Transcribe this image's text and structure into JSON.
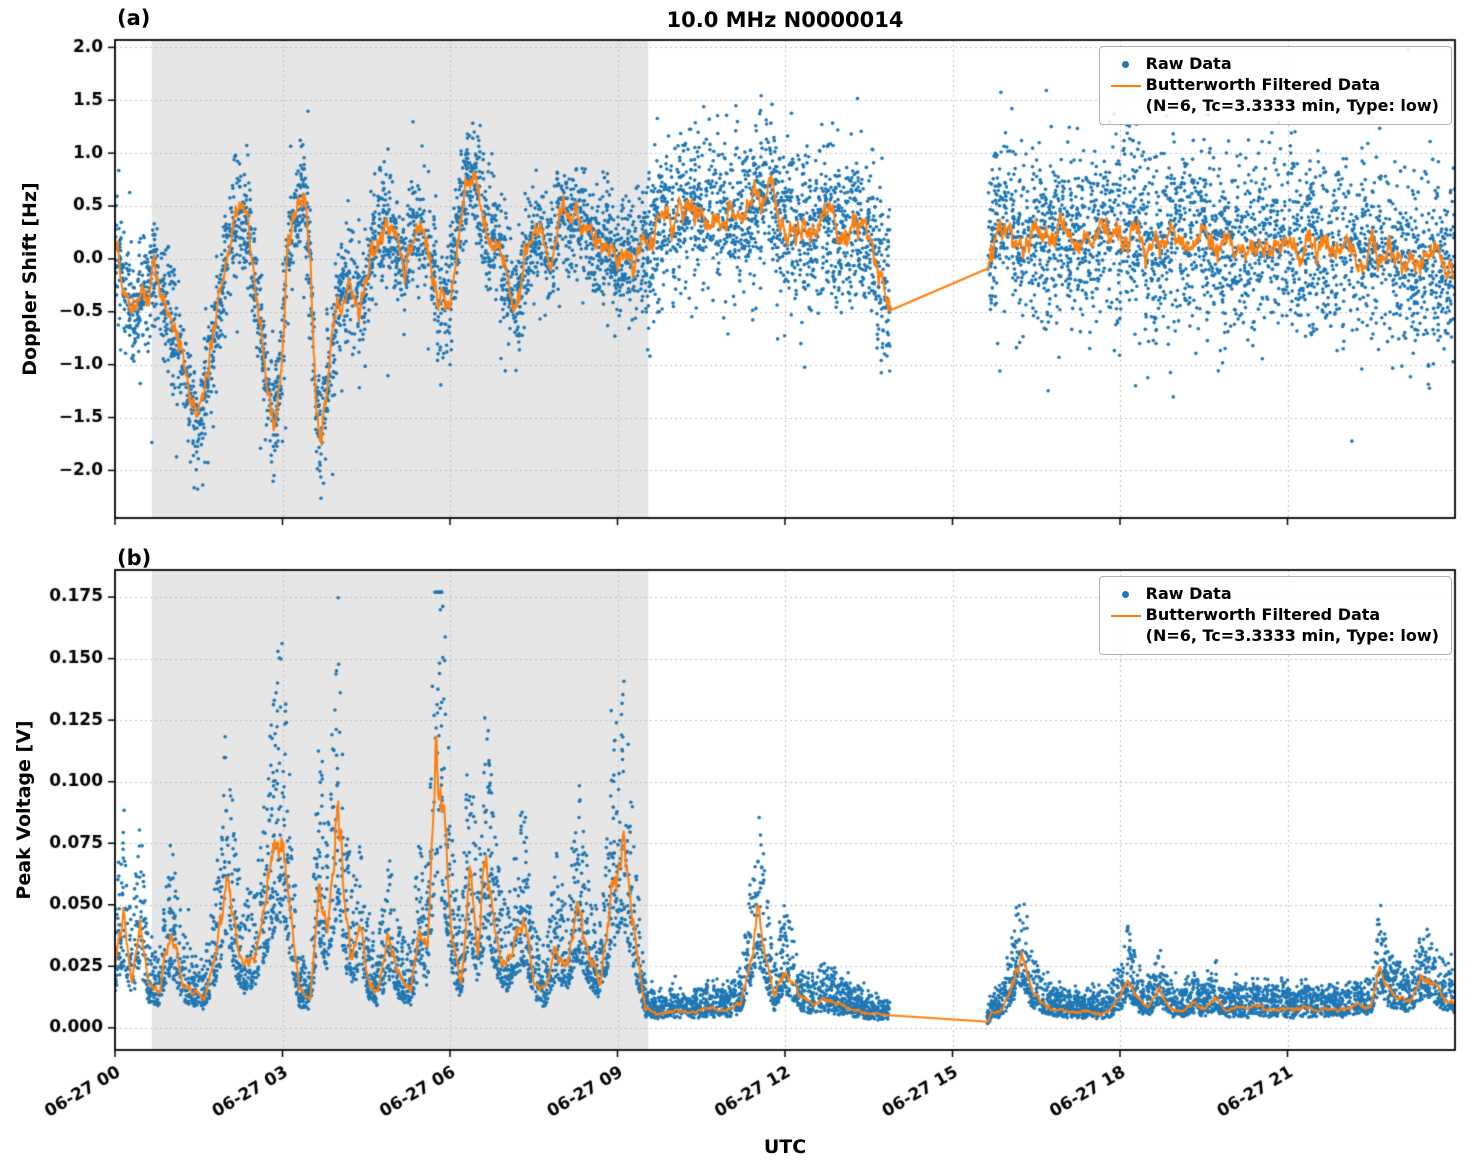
{
  "figure": {
    "title": "10.0 MHz N0000014",
    "xlabel": "UTC"
  },
  "panels": [
    {
      "label": "(a)",
      "ylabel": "Doppler Shift [Hz]"
    },
    {
      "label": "(b)",
      "ylabel": "Peak Voltage [V]"
    }
  ],
  "legend": {
    "raw_label": "Raw Data",
    "filtered_label": "Butterworth Filtered Data",
    "filtered_sublabel": "(N=6, Tc=3.3333 min, Type: low)"
  },
  "colors": {
    "raw": "#1f77b4",
    "filtered": "#ff7f0e",
    "shade": "#e6e6e6",
    "grid": "#c3c3c3",
    "spine": "#000000"
  },
  "chart_data": [
    {
      "type": "scatter",
      "panel": "a",
      "title": "10.0 MHz N0000014",
      "ylabel": "Doppler Shift [Hz]",
      "ylim": [
        -2.45,
        2.07
      ],
      "yticks": [
        2.0,
        1.5,
        1.0,
        0.5,
        0.0,
        -0.5,
        -1.0,
        -1.5,
        -2.0
      ],
      "ytick_decimals": 1,
      "xlim_hours": [
        0,
        24
      ],
      "xticks_hours": [
        0,
        3,
        6,
        9,
        12,
        15,
        18,
        21
      ],
      "xtick_labels": [
        "06-27 00",
        "06-27 03",
        "06-27 06",
        "06-27 09",
        "06-27 12",
        "06-27 15",
        "06-27 18",
        "06-27 21"
      ],
      "show_xtick_labels": false,
      "grid": true,
      "legend_position": "upper right",
      "shaded_hours": [
        0.66,
        9.55
      ],
      "gap_hours": [
        13.88,
        15.62
      ],
      "series": [
        {
          "name": "Raw Data",
          "kind": "scatter-noise",
          "n_points": 7600,
          "seed": 20140627,
          "noise_segments": [
            {
              "range": [
                0,
                9.55
              ],
              "std": 0.27
            },
            {
              "range": [
                9.55,
                13.88
              ],
              "std": 0.36
            },
            {
              "range": [
                15.62,
                24
              ],
              "std": 0.42
            }
          ],
          "outlier_prob": 0.015,
          "outlier_mag": [
            0.3,
            1.0
          ],
          "neg_outlier_frac": 0.6
        },
        {
          "name": "Butterworth Filtered Data",
          "kind": "line",
          "jitter": {
            "mode": "add",
            "ar": 0.82,
            "sigma": 0.045
          },
          "x": [
            0.0,
            0.15,
            0.3,
            0.5,
            0.7,
            0.9,
            1.1,
            1.3,
            1.5,
            1.7,
            1.9,
            2.1,
            2.3,
            2.5,
            2.7,
            2.85,
            3.0,
            3.1,
            3.25,
            3.4,
            3.5,
            3.6,
            3.7,
            3.85,
            4.0,
            4.2,
            4.4,
            4.6,
            4.8,
            5.0,
            5.2,
            5.4,
            5.6,
            5.8,
            6.0,
            6.15,
            6.3,
            6.45,
            6.6,
            6.8,
            7.0,
            7.2,
            7.4,
            7.6,
            7.8,
            8.0,
            8.2,
            8.4,
            8.6,
            8.8,
            9.0,
            9.2,
            9.4,
            9.6,
            9.8,
            10.0,
            10.25,
            10.5,
            10.75,
            11.0,
            11.25,
            11.5,
            11.75,
            12.0,
            12.25,
            12.5,
            12.75,
            13.0,
            13.25,
            13.5,
            13.88,
            15.62,
            15.75,
            16.0,
            16.25,
            16.5,
            16.75,
            17.0,
            17.25,
            17.5,
            17.75,
            18.0,
            18.25,
            18.5,
            18.75,
            19.0,
            19.25,
            19.5,
            19.75,
            20.0,
            20.25,
            20.5,
            20.75,
            21.0,
            21.25,
            21.5,
            21.75,
            22.0,
            22.25,
            22.5,
            22.75,
            23.0,
            23.25,
            23.5,
            23.75,
            24.0
          ],
          "y": [
            0.15,
            -0.25,
            -0.45,
            -0.3,
            -0.1,
            -0.45,
            -0.7,
            -1.15,
            -1.55,
            -1.0,
            -0.35,
            0.3,
            0.45,
            -0.2,
            -1.1,
            -1.6,
            -0.9,
            0.1,
            0.5,
            0.6,
            -0.1,
            -1.3,
            -1.75,
            -0.9,
            -0.4,
            -0.3,
            -0.5,
            0.1,
            0.35,
            0.2,
            -0.1,
            0.3,
            0.15,
            -0.5,
            -0.3,
            0.3,
            0.75,
            0.8,
            0.35,
            0.2,
            -0.2,
            -0.4,
            0.1,
            0.3,
            0.0,
            0.45,
            0.3,
            0.4,
            0.1,
            0.2,
            -0.05,
            0.1,
            0.0,
            0.2,
            0.45,
            0.35,
            0.5,
            0.4,
            0.35,
            0.45,
            0.35,
            0.5,
            0.65,
            0.25,
            0.3,
            0.2,
            0.35,
            0.2,
            0.3,
            0.25,
            -0.45,
            -0.1,
            0.3,
            0.35,
            0.1,
            0.25,
            0.15,
            0.3,
            0.2,
            0.1,
            0.3,
            0.2,
            0.35,
            0.15,
            0.1,
            0.2,
            0.15,
            0.25,
            0.1,
            0.15,
            0.05,
            0.15,
            0.1,
            0.2,
            0.1,
            0.15,
            0.05,
            0.1,
            0.0,
            0.1,
            0.05,
            -0.05,
            0.05,
            -0.1,
            -0.05,
            -0.15
          ]
        }
      ]
    },
    {
      "type": "scatter",
      "panel": "b",
      "ylabel": "Peak Voltage [V]",
      "ylim": [
        -0.009,
        0.186
      ],
      "yticks": [
        0.175,
        0.15,
        0.125,
        0.1,
        0.075,
        0.05,
        0.025,
        0.0
      ],
      "ytick_decimals": 3,
      "xlim_hours": [
        0,
        24
      ],
      "xticks_hours": [
        0,
        3,
        6,
        9,
        12,
        15,
        18,
        21
      ],
      "xtick_labels": [
        "06-27 00",
        "06-27 03",
        "06-27 06",
        "06-27 09",
        "06-27 12",
        "06-27 15",
        "06-27 18",
        "06-27 21"
      ],
      "show_xtick_labels": true,
      "grid": true,
      "legend_position": "upper right",
      "shaded_hours": [
        0.66,
        9.55
      ],
      "gap_hours": [
        13.88,
        15.62
      ],
      "series": [
        {
          "name": "Raw Data",
          "kind": "scatter-mult",
          "n_points": 7600,
          "seed": 777,
          "mult": [
            0.55,
            2.0
          ],
          "noise_abs": 0.0025,
          "spike_prob": 0.01,
          "spike_mult": 1.2,
          "ymax_clamp": 0.177,
          "ymin_clamp": 0.0008
        },
        {
          "name": "Butterworth Filtered Data",
          "kind": "line",
          "jitter": {
            "mode": "mult",
            "ar": 0.82,
            "sigma": 0.12,
            "scale": 0.3,
            "floor": 0.0012
          },
          "x": [
            0.0,
            0.15,
            0.3,
            0.45,
            0.6,
            0.8,
            1.0,
            1.2,
            1.4,
            1.6,
            1.8,
            2.0,
            2.15,
            2.3,
            2.5,
            2.7,
            2.9,
            3.0,
            3.15,
            3.3,
            3.5,
            3.65,
            3.8,
            4.0,
            4.1,
            4.25,
            4.4,
            4.55,
            4.7,
            4.9,
            5.1,
            5.3,
            5.45,
            5.6,
            5.75,
            5.9,
            6.05,
            6.2,
            6.35,
            6.5,
            6.65,
            6.8,
            7.0,
            7.2,
            7.35,
            7.5,
            7.7,
            7.9,
            8.1,
            8.3,
            8.5,
            8.7,
            8.9,
            9.1,
            9.3,
            9.5,
            9.7,
            10.0,
            10.3,
            10.6,
            10.9,
            11.2,
            11.4,
            11.5,
            11.65,
            11.8,
            12.0,
            12.15,
            12.3,
            12.5,
            12.7,
            12.9,
            13.1,
            13.3,
            13.5,
            13.88,
            15.62,
            15.7,
            15.9,
            16.1,
            16.25,
            16.4,
            16.6,
            16.8,
            17.0,
            17.2,
            17.4,
            17.6,
            17.8,
            18.0,
            18.15,
            18.3,
            18.5,
            18.7,
            18.9,
            19.1,
            19.3,
            19.5,
            19.7,
            19.9,
            20.1,
            20.3,
            20.5,
            20.7,
            20.9,
            21.1,
            21.3,
            21.5,
            21.7,
            21.9,
            22.1,
            22.3,
            22.5,
            22.65,
            22.8,
            23.0,
            23.2,
            23.4,
            23.6,
            23.8,
            24.0
          ],
          "y": [
            0.025,
            0.045,
            0.02,
            0.042,
            0.018,
            0.015,
            0.04,
            0.02,
            0.015,
            0.012,
            0.03,
            0.065,
            0.038,
            0.025,
            0.03,
            0.05,
            0.075,
            0.08,
            0.045,
            0.015,
            0.012,
            0.06,
            0.04,
            0.088,
            0.045,
            0.03,
            0.04,
            0.02,
            0.015,
            0.035,
            0.02,
            0.015,
            0.04,
            0.03,
            0.117,
            0.083,
            0.035,
            0.02,
            0.065,
            0.03,
            0.07,
            0.04,
            0.025,
            0.04,
            0.045,
            0.02,
            0.015,
            0.035,
            0.025,
            0.05,
            0.03,
            0.02,
            0.055,
            0.075,
            0.04,
            0.008,
            0.006,
            0.007,
            0.006,
            0.008,
            0.007,
            0.01,
            0.03,
            0.048,
            0.03,
            0.012,
            0.025,
            0.018,
            0.012,
            0.01,
            0.012,
            0.01,
            0.008,
            0.007,
            0.006,
            0.005,
            0.002,
            0.006,
            0.008,
            0.02,
            0.03,
            0.015,
            0.01,
            0.008,
            0.007,
            0.006,
            0.007,
            0.006,
            0.007,
            0.012,
            0.022,
            0.012,
            0.008,
            0.015,
            0.008,
            0.007,
            0.01,
            0.008,
            0.012,
            0.007,
            0.008,
            0.007,
            0.009,
            0.007,
            0.008,
            0.007,
            0.008,
            0.007,
            0.008,
            0.007,
            0.008,
            0.01,
            0.009,
            0.025,
            0.015,
            0.012,
            0.01,
            0.02,
            0.018,
            0.012,
            0.01
          ]
        }
      ]
    }
  ]
}
